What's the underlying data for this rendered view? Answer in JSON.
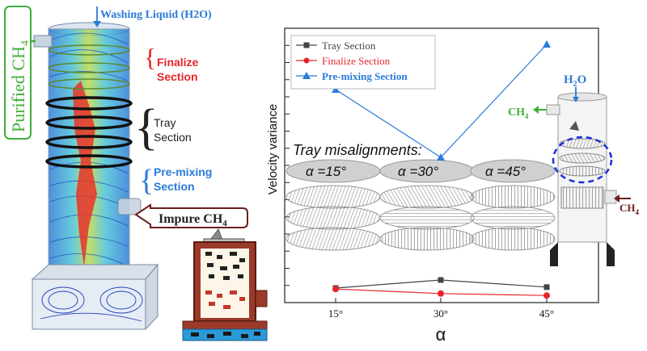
{
  "column_labels": {
    "washing_liquid": "Washing Liquid (H2O)",
    "purified": "Purified CH",
    "purified_sub": "4",
    "finalize_line1": "Finalize",
    "finalize_line2": "Section",
    "tray_line1": "Tray",
    "tray_line2": "Section",
    "premix_line1": "Pre-mixing",
    "premix_line2": "Section",
    "impure": "Impure CH",
    "impure_sub": "4"
  },
  "right_labels": {
    "h2o_main": "H",
    "h2o_sub": "2",
    "h2o_end": "O",
    "ch4_out_main": "CH",
    "ch4_out_sub": "4",
    "ch4_in_main": "CH",
    "ch4_in_sub": "4"
  },
  "misalignment": {
    "title": "Tray misalignments:",
    "labels": [
      "α =15°",
      "α =30°",
      "α =45°"
    ]
  },
  "chart_data": {
    "type": "line",
    "x": [
      "15°",
      "30°",
      "45°"
    ],
    "xlabel": "α",
    "ylabel": "Velocity variance",
    "series": [
      {
        "name": "Tray Section",
        "color": "#444444",
        "marker": "square",
        "values": [
          0.45,
          0.7,
          0.48
        ]
      },
      {
        "name": "Finalize Section",
        "color": "#e8242a",
        "marker": "circle",
        "values": [
          0.42,
          0.28,
          0.22
        ]
      },
      {
        "name": "Pre-mixing Section",
        "color": "#2a7bd8",
        "marker": "triangle",
        "values": [
          6.6,
          4.5,
          8.0
        ]
      }
    ],
    "ylim": [
      0,
      8.5
    ],
    "grid": false,
    "legend": "top-left"
  },
  "colors": {
    "red": "#e8242a",
    "blue": "#2a7bd8",
    "green": "#3fae3a",
    "dark": "#222222",
    "brown": "#6b1e1e"
  }
}
